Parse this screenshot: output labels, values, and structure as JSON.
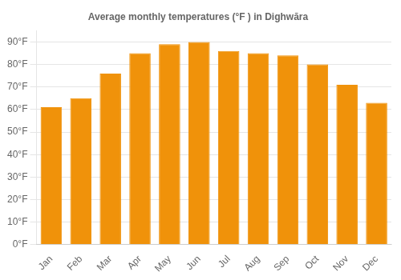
{
  "chart_data": {
    "type": "bar",
    "title": "Average monthly temperatures (°F ) in Dighwāra",
    "categories": [
      "Jan",
      "Feb",
      "Mar",
      "Apr",
      "May",
      "Jun",
      "Jul",
      "Aug",
      "Sep",
      "Oct",
      "Nov",
      "Dec"
    ],
    "values": [
      61,
      65,
      76,
      85,
      89,
      90,
      86,
      85,
      84,
      80,
      71,
      63
    ],
    "color": "#F0920A",
    "ylim": [
      0,
      95
    ],
    "yticks": [
      {
        "value": 0,
        "label": "0°F"
      },
      {
        "value": 10,
        "label": "10°F"
      },
      {
        "value": 20,
        "label": "20°F"
      },
      {
        "value": 30,
        "label": "30°F"
      },
      {
        "value": 40,
        "label": "40°F"
      },
      {
        "value": 50,
        "label": "50°F"
      },
      {
        "value": 60,
        "label": "60°F"
      },
      {
        "value": 70,
        "label": "70°F"
      },
      {
        "value": 80,
        "label": "80°F"
      },
      {
        "value": 90,
        "label": "90°F"
      }
    ],
    "grid": true
  }
}
